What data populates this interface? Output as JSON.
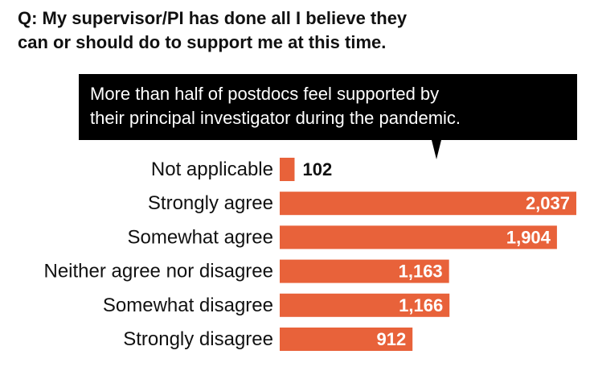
{
  "title": {
    "line1": "Q: My supervisor/PI has done all I believe they",
    "line2": "can or should do to support me at this time."
  },
  "callout": {
    "line1": "More than half of postdocs feel supported by",
    "line2": "their principal investigator during the pandemic."
  },
  "colors": {
    "bar": "#e8623a",
    "text": "#111111",
    "callout_bg": "#000000"
  },
  "chart_data": {
    "type": "bar",
    "orientation": "horizontal",
    "categories": [
      "Not applicable",
      "Strongly agree",
      "Somewhat agree",
      "Neither agree nor disagree",
      "Somewhat disagree",
      "Strongly disagree"
    ],
    "values": [
      102,
      2037,
      1904,
      1163,
      1166,
      912
    ],
    "value_labels": [
      "102",
      "2,037",
      "1,904",
      "1,163",
      "1,166",
      "912"
    ],
    "xlim": [
      0,
      2037
    ],
    "grid": false,
    "legend": "none"
  }
}
